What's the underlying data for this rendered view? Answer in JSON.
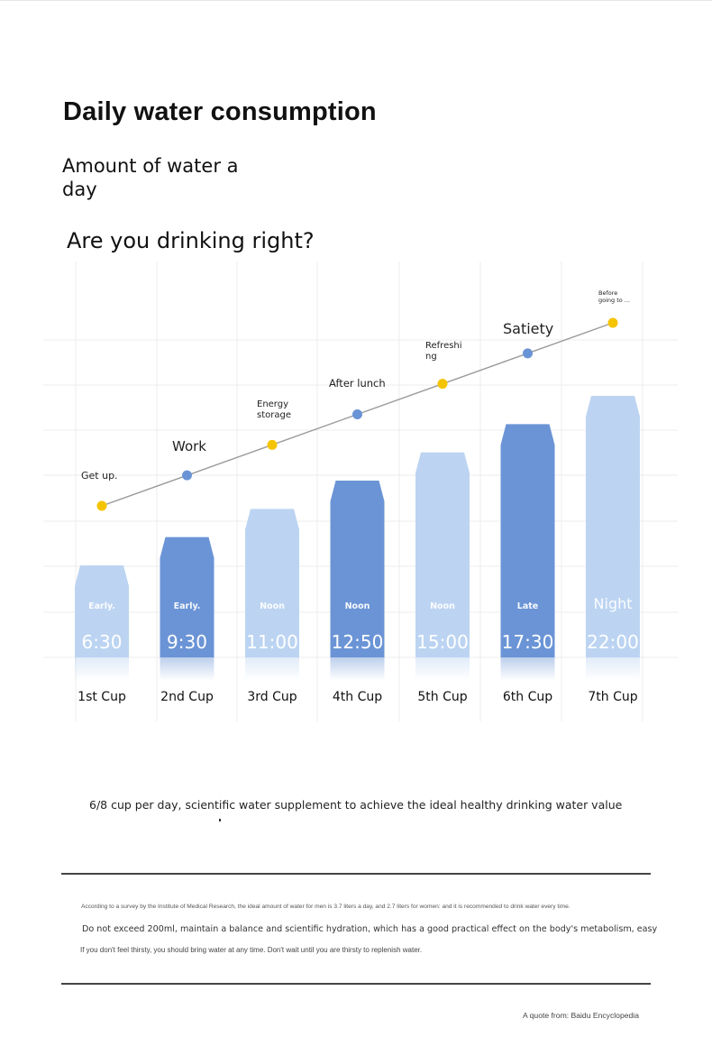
{
  "header": {
    "title": "Daily water consumption",
    "subtitle": "Amount of water a day",
    "question": "Are you drinking right?"
  },
  "chart_data": {
    "type": "bar",
    "categories": [
      "1st Cup",
      "2nd Cup",
      "3rd Cup",
      "4th Cup",
      "5th Cup",
      "6th Cup",
      "7th Cup"
    ],
    "values": [
      1,
      2,
      3,
      4,
      5,
      6,
      7
    ],
    "times": [
      "6:30",
      "9:30",
      "11:00",
      "12:50",
      "15:00",
      "17:30",
      "22:00"
    ],
    "periods": [
      "Early.",
      "Early.",
      "Noon",
      "Noon",
      "Noon",
      "Late",
      "Night"
    ],
    "bar_colors": [
      "#bcd4f2",
      "#6b94d6",
      "#bcd4f2",
      "#6b94d6",
      "#bcd4f2",
      "#6b94d6",
      "#bcd4f2"
    ],
    "line_points": [
      1,
      2,
      3,
      4,
      5,
      6,
      7
    ],
    "line_labels": [
      "Get up.",
      "Work",
      "Energy storage",
      "After lunch",
      "Refreshing",
      "Satiety",
      "Before going to ..."
    ],
    "marker_colors": [
      "#f5c400",
      "#6b94d6",
      "#f5c400",
      "#6b94d6",
      "#f5c400",
      "#6b94d6",
      "#f5c400"
    ],
    "line_color": "#9a9a9a",
    "grid": true,
    "title": "",
    "xlabel": "",
    "ylabel": ""
  },
  "summary": "6/8 cup per day, scientific water supplement to achieve the ideal healthy drinking water value",
  "notes": {
    "small": "According to a survey by the Institute of Medical Research, the ideal amount of water for men is 3.7 liters a day, and 2.7 liters for women: and it is recommended to drink water every time.",
    "main": "Do not exceed 200ml, maintain a balance and scientific hydration, which has a good practical effect on the body's metabolism, easy",
    "tip": "If you don't feel thirsty, you should bring water at any time. Don't wait until you are thirsty to replenish water."
  },
  "source": "A quote from: Baidu Encyclopedia"
}
